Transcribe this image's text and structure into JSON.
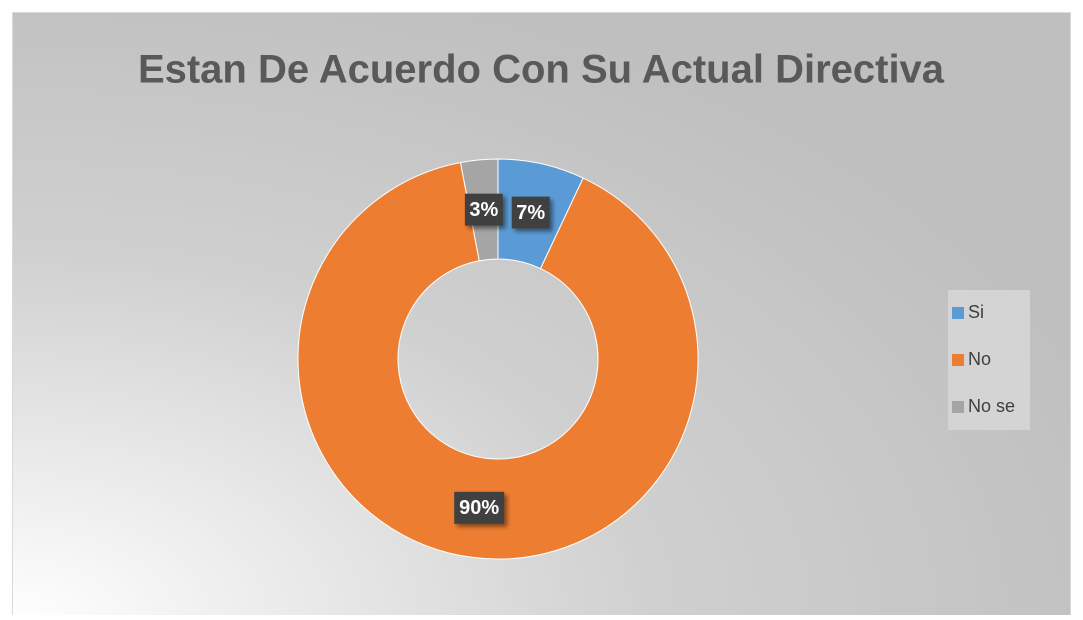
{
  "chart_data": {
    "type": "doughnut",
    "title": "Estan De Acuerdo Con Su Actual Directiva",
    "categories": [
      "Si",
      "No",
      "No se"
    ],
    "values": [
      7,
      90,
      3
    ],
    "value_labels": [
      "7%",
      "90%",
      "3%"
    ],
    "colors": [
      "#5b9bd5",
      "#ed7d31",
      "#a5a5a5"
    ],
    "legend": "right"
  }
}
